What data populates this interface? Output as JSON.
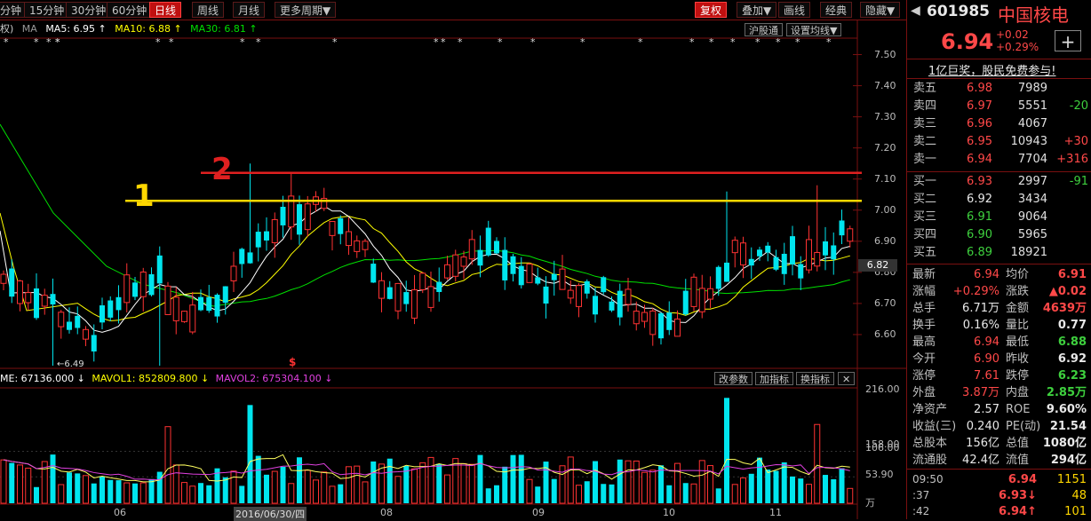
{
  "toolbar": {
    "periods": [
      "分钟",
      "15分钟",
      "30分钟",
      "60分钟",
      "日线",
      "周线",
      "月线",
      "更多周期▼"
    ],
    "active_period": "日线",
    "right_buttons": [
      "复权",
      "叠加▼",
      "画线",
      "经典",
      "隐藏▼"
    ]
  },
  "ma_row": {
    "prefix": "权)",
    "ma_label": "MA",
    "ma5": "MA5: 6.95 ↑",
    "ma10": "MA10: 6.88 ↑",
    "ma30": "MA30: 6.81 ↑",
    "btn_market": "沪股通",
    "btn_ma_settings": "设置均线▼"
  },
  "annotations": {
    "line1_label": "1",
    "line2_label": "2",
    "low_label": "←6.49",
    "dividend_mark": "$"
  },
  "price_axis": {
    "ticks": [
      "7.50",
      "7.40",
      "7.30",
      "7.20",
      "7.10",
      "7.00",
      "6.90",
      "6.80",
      "6.70",
      "6.60"
    ],
    "current": "6.82"
  },
  "volume_header": {
    "vol": "ME: 67136.000 ↓",
    "mavol1": "MAVOL1: 852809.800 ↓",
    "mavol2": "MAVOL2: 675304.100 ↓",
    "btn_params": "改参数",
    "btn_add": "加指标",
    "btn_switch": "换指标",
    "btn_close": "✕"
  },
  "volume_axis": {
    "ticks": [
      "216.00",
      "158.00",
      "106.00",
      "53.90",
      "万"
    ]
  },
  "date_axis": {
    "labels": [
      "06",
      "2016/06/30/四",
      "08",
      "09",
      "10",
      "11"
    ]
  },
  "colors": {
    "up": "#ff3232",
    "down": "#00e5ee",
    "ma5": "#ffffff",
    "ma10": "#ffff00",
    "ma30": "#00e000",
    "line1": "#ffd700",
    "line2": "#e02020"
  },
  "chart_data": {
    "type": "candlestick",
    "annotation_lines": [
      {
        "label": "1",
        "y": 7.03
      },
      {
        "label": "2",
        "y": 7.12
      }
    ],
    "last_close": 6.94,
    "period_low": 6.49
  },
  "panel": {
    "code": "601985",
    "name": "中国核电",
    "price": "6.94",
    "change": "+0.02",
    "change_pct": "+0.29%",
    "add_btn": "+",
    "ad": "1亿巨奖，股民免费参与!",
    "sell": [
      {
        "label": "卖五",
        "price": "6.98",
        "vol": "7989",
        "chg": ""
      },
      {
        "label": "卖四",
        "price": "6.97",
        "vol": "5551",
        "chg": "-20"
      },
      {
        "label": "卖三",
        "price": "6.96",
        "vol": "4067",
        "chg": ""
      },
      {
        "label": "卖二",
        "price": "6.95",
        "vol": "10943",
        "chg": "+30"
      },
      {
        "label": "卖一",
        "price": "6.94",
        "vol": "7704",
        "chg": "+316"
      }
    ],
    "buy": [
      {
        "label": "买一",
        "price": "6.93",
        "vol": "2997",
        "chg": "-91"
      },
      {
        "label": "买二",
        "price": "6.92",
        "vol": "3434",
        "chg": ""
      },
      {
        "label": "买三",
        "price": "6.91",
        "vol": "9064",
        "chg": ""
      },
      {
        "label": "买四",
        "price": "6.90",
        "vol": "5965",
        "chg": ""
      },
      {
        "label": "买五",
        "price": "6.89",
        "vol": "18921",
        "chg": ""
      }
    ],
    "stats": [
      [
        "最新",
        "6.94",
        "均价",
        "6.91"
      ],
      [
        "涨幅",
        "+0.29%",
        "涨跌",
        "▲0.02"
      ],
      [
        "总手",
        "6.71万",
        "金额",
        "4639万"
      ],
      [
        "换手",
        "0.16%",
        "量比",
        "0.77"
      ],
      [
        "最高",
        "6.94",
        "最低",
        "6.88"
      ],
      [
        "今开",
        "6.90",
        "昨收",
        "6.92"
      ],
      [
        "涨停",
        "7.61",
        "跌停",
        "6.23"
      ],
      [
        "外盘",
        "3.87万",
        "内盘",
        "2.85万"
      ],
      [
        "净资产",
        "2.57",
        "ROE",
        "9.60%"
      ],
      [
        "收益(三)",
        "0.240",
        "PE(动)",
        "21.54"
      ],
      [
        "总股本",
        "156亿",
        "总值",
        "1080亿"
      ],
      [
        "流通股",
        "42.4亿",
        "流值",
        "294亿"
      ]
    ],
    "ticks": [
      {
        "time": "09:50",
        "price": "6.94",
        "vol": "1151"
      },
      {
        "time": ":37",
        "price": "6.93↓",
        "vol": "48"
      },
      {
        "time": ":42",
        "price": "6.94↑",
        "vol": "101"
      }
    ]
  }
}
